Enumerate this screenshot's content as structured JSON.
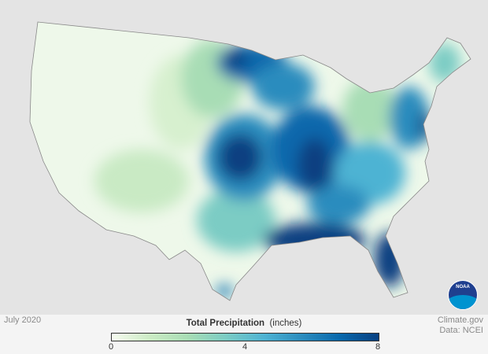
{
  "date_label": "July 2020",
  "legend": {
    "title": "Total Precipitation",
    "units": "(inches)",
    "ticks": [
      "0",
      "4",
      "8"
    ],
    "min": 0,
    "max": 8,
    "colors": [
      "#f7fcf0",
      "#ccebc5",
      "#a8ddb5",
      "#7bccc4",
      "#4eb3d3",
      "#2b8cbe",
      "#0868ac",
      "#084081"
    ]
  },
  "credit": {
    "source": "Climate.gov",
    "data": "Data: NCEI"
  },
  "logo": {
    "text": "NOAA"
  }
}
